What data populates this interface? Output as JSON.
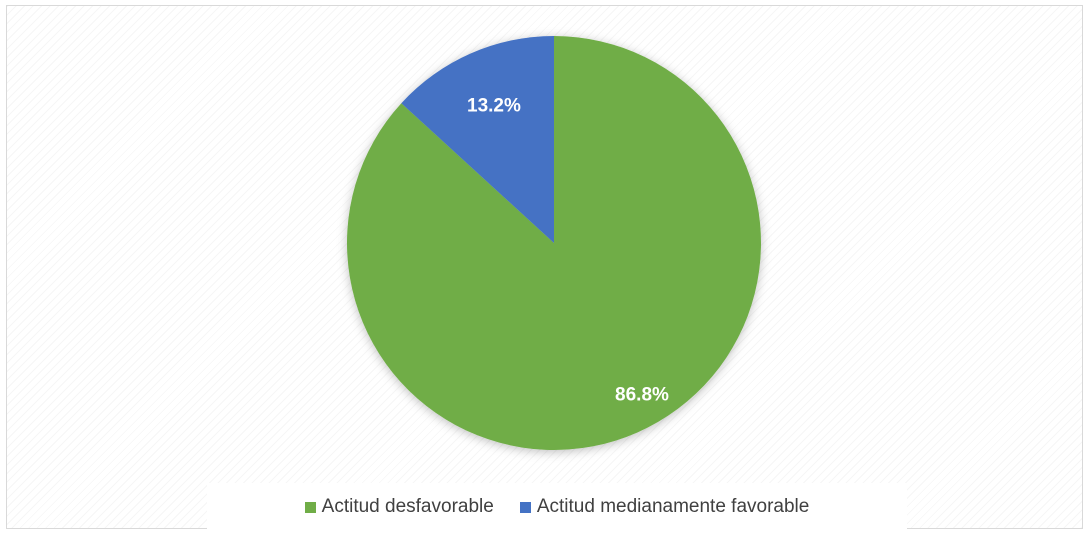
{
  "chart_data": {
    "type": "pie",
    "title": "",
    "start_angle_deg": 0,
    "direction": "clockwise",
    "slices": [
      {
        "name": "Actitud desfavorable",
        "value": 86.8,
        "label": "86.8%",
        "color": "#70ad47"
      },
      {
        "name": "Actitud medianamente favorable",
        "value": 13.2,
        "label": "13.2%",
        "color": "#4472c4"
      }
    ],
    "legend_position": "bottom",
    "data_labels": "inside"
  }
}
